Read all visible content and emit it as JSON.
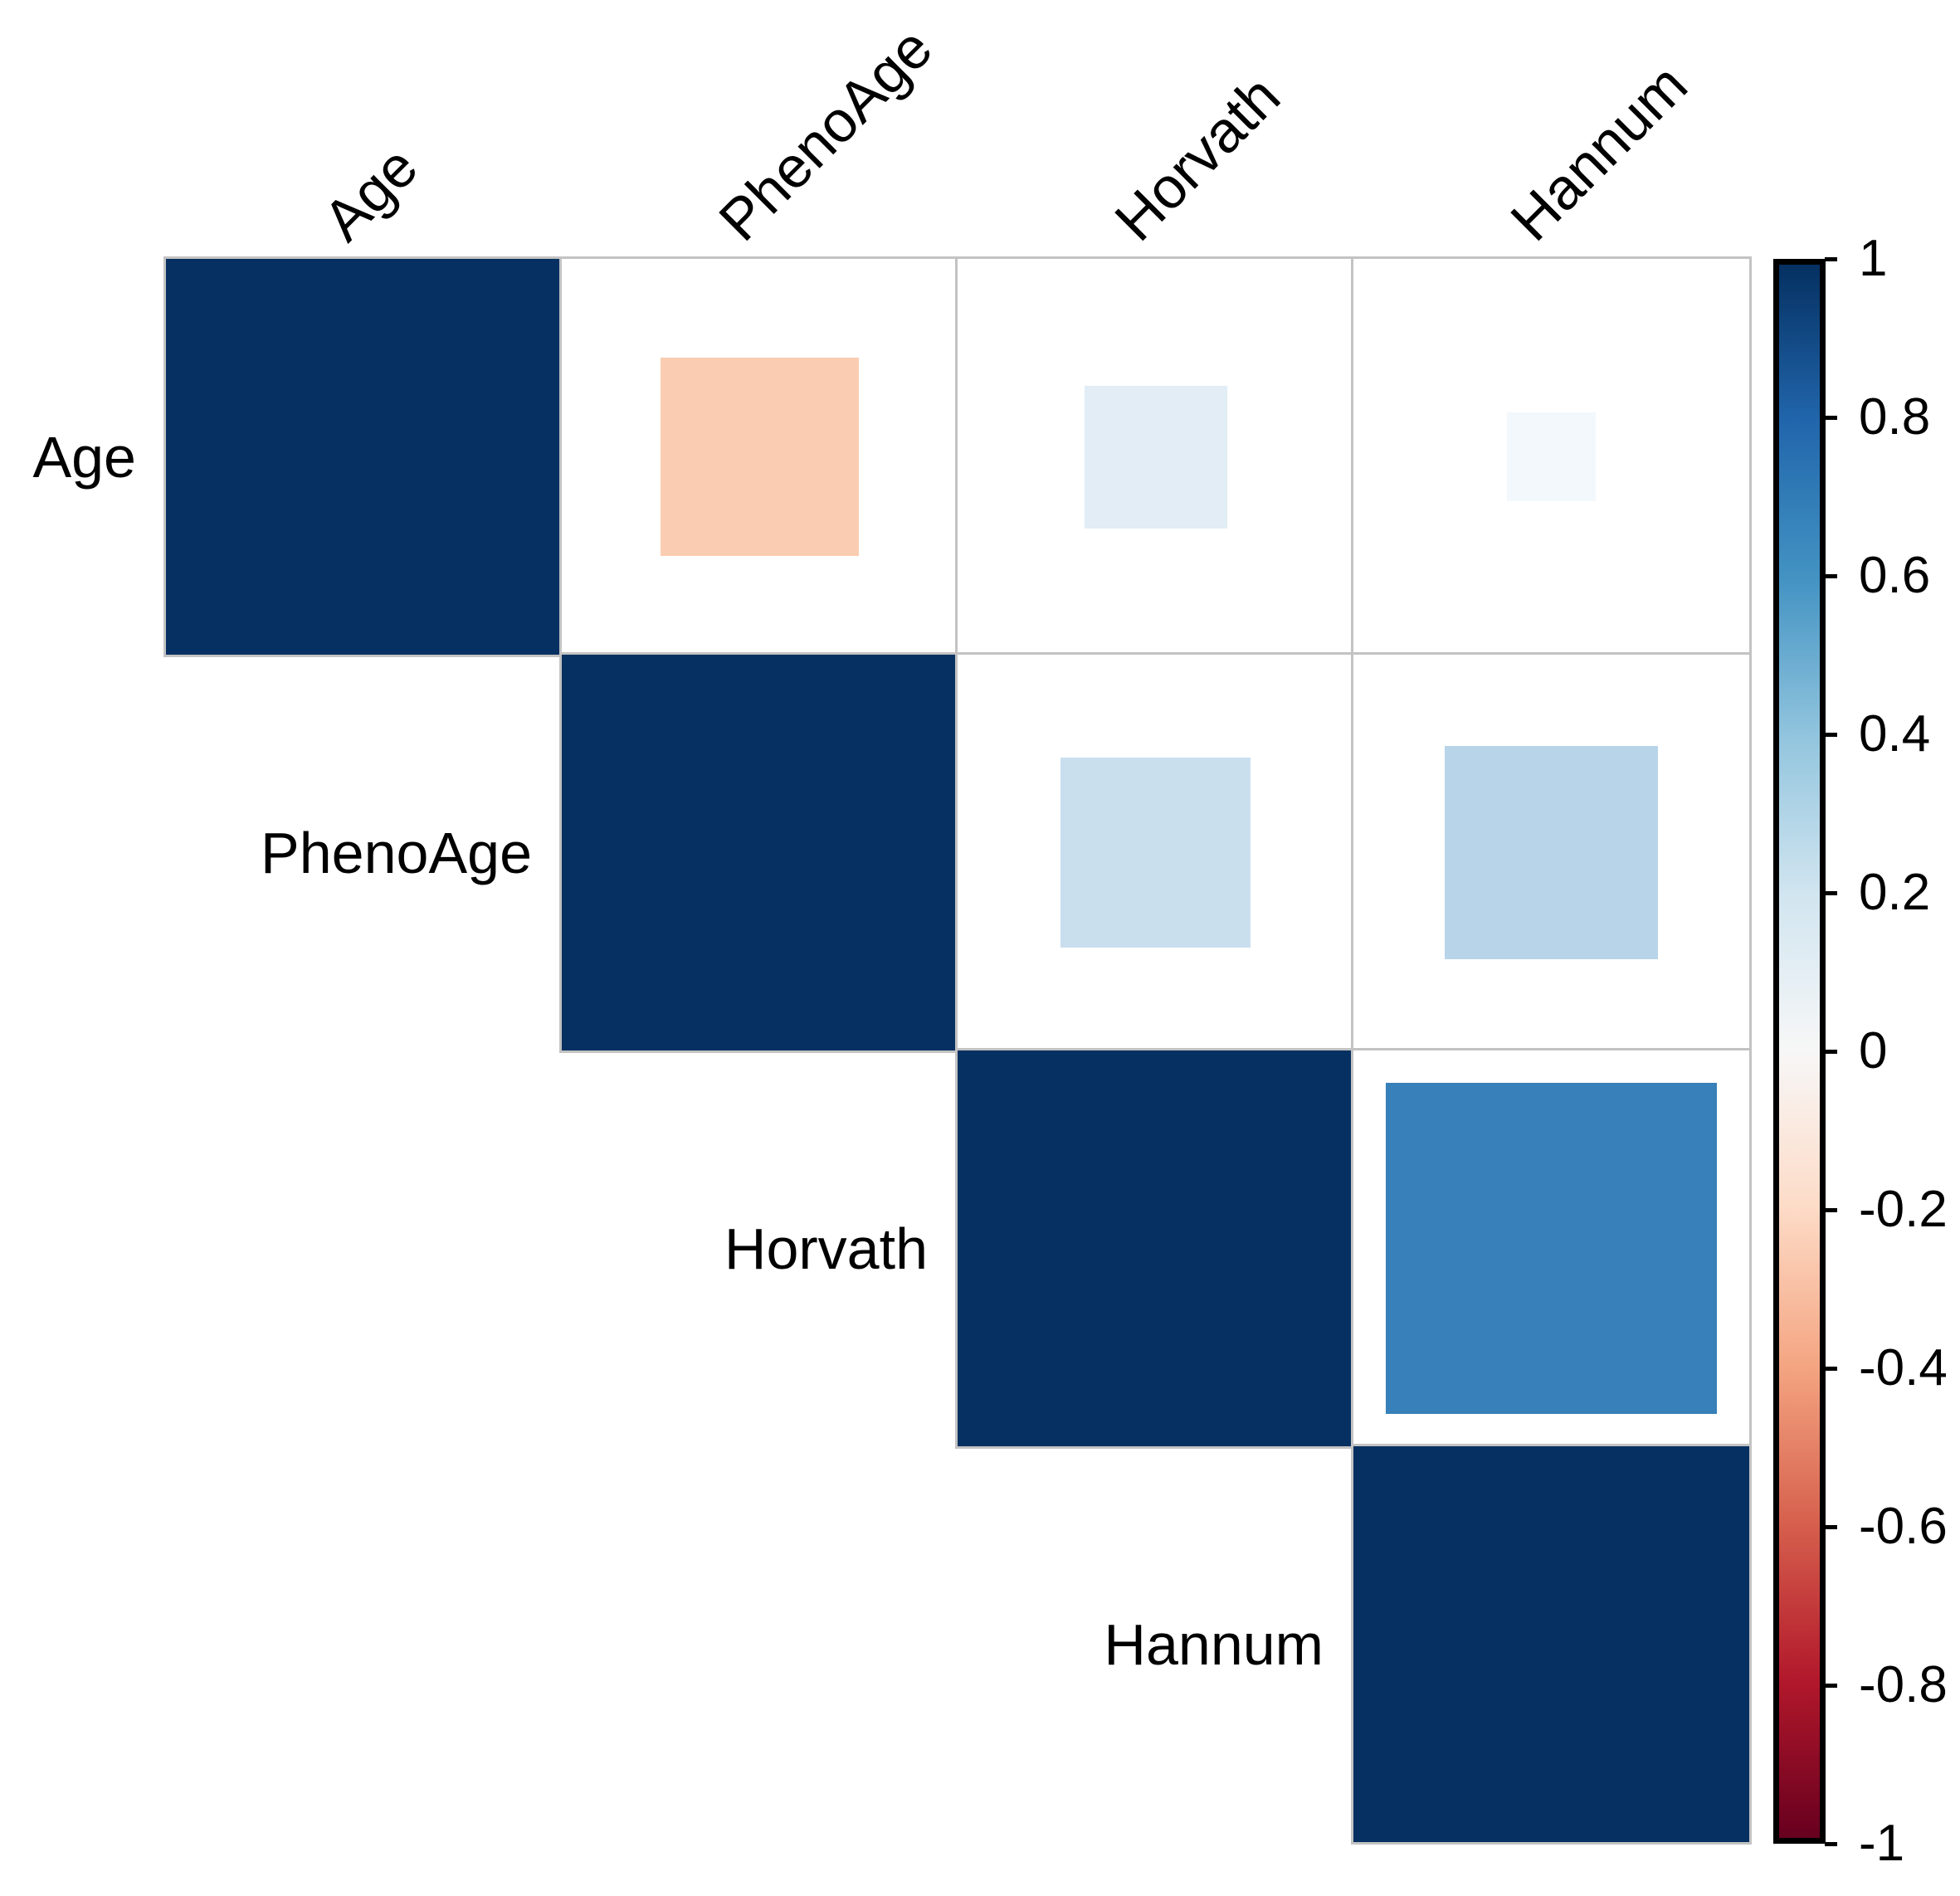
{
  "figure": {
    "kind": "correlation-matrix-plot",
    "glyph": "square",
    "triangle": "upper",
    "background": "#FFFFFF",
    "grid_color": "#C3C3C3",
    "label_color": "#000000"
  },
  "chart_data": {
    "type": "heatmap",
    "subtype": "correlation-matrix-squares",
    "variables": [
      "Age",
      "PhenoAge",
      "Horvath",
      "Hannum"
    ],
    "matrix": [
      [
        1,
        -0.25,
        0.13,
        0.05
      ],
      [
        null,
        1,
        0.23,
        0.29
      ],
      [
        null,
        null,
        1,
        0.7
      ],
      [
        null,
        null,
        null,
        1
      ]
    ],
    "cell_colors": [
      [
        "#053061",
        "#FACDB2",
        "#E2EDF5",
        "#F2F8FB"
      ],
      [
        null,
        "#053061",
        "#C9DFEE",
        "#B8D4E9"
      ],
      [
        null,
        null,
        "#053061",
        "#3780B9"
      ],
      [
        null,
        null,
        null,
        "#053061"
      ]
    ],
    "legend_position": "right",
    "colorbar": {
      "min": -1,
      "max": 1,
      "tick_values": [
        1,
        0.8,
        0.6,
        0.4,
        0.2,
        0,
        -0.2,
        -0.4,
        -0.6,
        -0.8,
        -1
      ],
      "tick_labels": [
        "1",
        "0.8",
        "0.6",
        "0.4",
        "0.2",
        "0",
        "-0.2",
        "-0.4",
        "-0.6",
        "-0.8",
        "-1"
      ],
      "palette_top_to_bottom": [
        "#053061",
        "#2166AC",
        "#4393C3",
        "#92C5DE",
        "#D1E5F0",
        "#F7F7F7",
        "#FDDBC7",
        "#F4A582",
        "#D6604D",
        "#B2182B",
        "#67001F"
      ],
      "border_color": "#000000"
    }
  }
}
